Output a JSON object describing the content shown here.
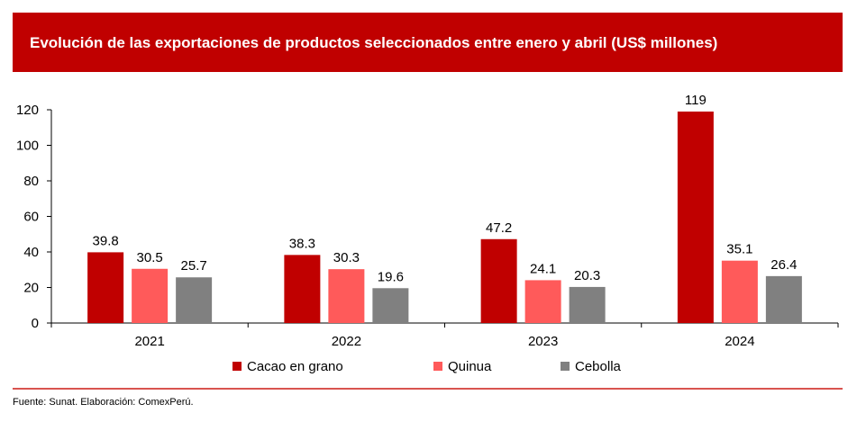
{
  "header": {
    "title": "Evolución de las exportaciones de productos seleccionados entre enero y abril (US$ millones)"
  },
  "footer": {
    "source": "Fuente: Sunat. Elaboración: ComexPerú."
  },
  "chart_data": {
    "type": "bar",
    "title": "Evolución de las exportaciones de productos seleccionados entre enero y abril (US$ millones)",
    "categories": [
      "2021",
      "2022",
      "2023",
      "2024"
    ],
    "series": [
      {
        "name": "Cacao en grano",
        "color": "#c00000",
        "values": [
          39.8,
          38.3,
          47.2,
          119
        ]
      },
      {
        "name": "Quinua",
        "color": "#ff5a5a",
        "values": [
          30.5,
          30.3,
          24.1,
          35.1
        ]
      },
      {
        "name": "Cebolla",
        "color": "#808080",
        "values": [
          25.7,
          19.6,
          20.3,
          26.4
        ]
      }
    ],
    "value_labels": [
      [
        "39.8",
        "38.3",
        "47.2",
        "119"
      ],
      [
        "30.5",
        "30.3",
        "24.1",
        "35.1"
      ],
      [
        "25.7",
        "19.6",
        "20.3",
        "26.4"
      ]
    ],
    "ylim": [
      0,
      120
    ],
    "yticks": [
      0,
      20,
      40,
      60,
      80,
      100,
      120
    ],
    "xlabel": "",
    "ylabel": "",
    "grid": false,
    "legend_position": "bottom"
  }
}
